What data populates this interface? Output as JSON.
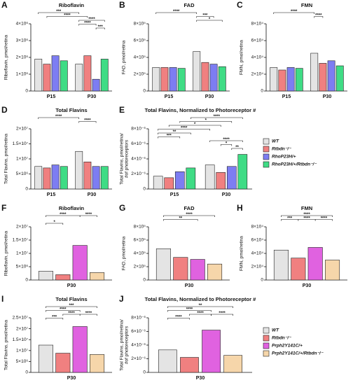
{
  "chart_data": [
    {
      "type": "bar",
      "label": "A",
      "title": "Riboflavin",
      "ylabel": "Riboflavin, pmol/retina",
      "categories": [
        "P15",
        "P30"
      ],
      "series": [
        {
          "color": "#e4e4e4",
          "values": [
            1900000,
            1600000
          ]
        },
        {
          "color": "#f08080",
          "values": [
            1600000,
            2100000
          ]
        },
        {
          "color": "#7d7df2",
          "values": [
            2100000,
            700000
          ]
        },
        {
          "color": "#3fdc85",
          "values": [
            1800000,
            1900000
          ]
        }
      ],
      "series_order": "grouped",
      "ylim": [
        0,
        4000000
      ],
      "yticks": [
        0,
        {
          "value": 1000000,
          "label": "1×10⁶"
        },
        {
          "value": 2000000,
          "label": "2×10⁶"
        },
        {
          "value": 3000000,
          "label": "3×10⁶"
        },
        {
          "value": 4000000,
          "label": "4×10⁶"
        }
      ],
      "annotations": [
        "***",
        "****",
        "****",
        "****",
        "***"
      ]
    },
    {
      "type": "bar",
      "label": "B",
      "title": "FAD",
      "ylabel": "FAD, pmol/retina",
      "categories": [
        "P15",
        "P30"
      ],
      "series": [
        {
          "color": "#e4e4e4",
          "values": [
            280000,
            470000
          ]
        },
        {
          "color": "#f08080",
          "values": [
            280000,
            340000
          ]
        },
        {
          "color": "#7d7df2",
          "values": [
            280000,
            320000
          ]
        },
        {
          "color": "#3fdc85",
          "values": [
            270000,
            290000
          ]
        }
      ],
      "ylim": [
        0,
        800000
      ],
      "yticks": [
        0,
        {
          "value": 200000,
          "label": "2×10⁵"
        },
        {
          "value": 400000,
          "label": "4×10⁵"
        },
        {
          "value": 600000,
          "label": "6×10⁵"
        },
        {
          "value": 800000,
          "label": "8×10⁵"
        }
      ],
      "annotations": [
        "****",
        "***",
        "*"
      ]
    },
    {
      "type": "bar",
      "label": "C",
      "title": "FMN",
      "ylabel": "FMN, pmol/retina",
      "categories": [
        "P15",
        "P30"
      ],
      "series": [
        {
          "color": "#e4e4e4",
          "values": [
            28000,
            45000
          ]
        },
        {
          "color": "#f08080",
          "values": [
            25000,
            33000
          ]
        },
        {
          "color": "#7d7df2",
          "values": [
            28000,
            36000
          ]
        },
        {
          "color": "#3fdc85",
          "values": [
            27000,
            30000
          ]
        }
      ],
      "ylim": [
        0,
        80000
      ],
      "yticks": [
        0,
        {
          "value": 20000,
          "label": "2×10⁴"
        },
        {
          "value": 40000,
          "label": "4×10⁴"
        },
        {
          "value": 60000,
          "label": "6×10⁴"
        },
        {
          "value": 80000,
          "label": "8×10⁴"
        }
      ],
      "annotations": [
        "****",
        "****"
      ]
    },
    {
      "type": "bar",
      "label": "D",
      "title": "Total Flavins",
      "ylabel": "Total Flavins, pmol/retina",
      "categories": [
        "P15",
        "P30"
      ],
      "series": [
        {
          "color": "#e4e4e4",
          "values": [
            7500000,
            12500000
          ]
        },
        {
          "color": "#f08080",
          "values": [
            7000000,
            9000000
          ]
        },
        {
          "color": "#7d7df2",
          "values": [
            8000000,
            7500000
          ]
        },
        {
          "color": "#3fdc85",
          "values": [
            7500000,
            7500000
          ]
        }
      ],
      "ylim": [
        0,
        20000000
      ],
      "yticks": [
        0,
        {
          "value": 5000000,
          "label": "5×10⁶"
        },
        {
          "value": 10000000,
          "label": "1×10⁷"
        },
        {
          "value": 15000000,
          "label": "1.5×10⁷"
        },
        {
          "value": 20000000,
          "label": "2×10⁷"
        }
      ],
      "annotations": [
        "****",
        "****"
      ]
    },
    {
      "type": "bar",
      "label": "E",
      "title": "Total Flavins, Normalized to Photoreceptor #",
      "ylabel": [
        "Total Flavins, pmol/retina/",
        "#of photoreceptors"
      ],
      "categories": [
        "P15",
        "P30"
      ],
      "series": [
        {
          "name": "WT",
          "color": "#e4e4e4",
          "values": [
            1.7e-06,
            3.2e-06
          ]
        },
        {
          "name": "Rtbdn⁻/⁻",
          "color": "#f08080",
          "values": [
            1.5e-06,
            2.2e-06
          ]
        },
        {
          "name": "RhoP23H/+",
          "color": "#7d7df2",
          "values": [
            2.3e-06,
            3e-06
          ]
        },
        {
          "name": "RhoP23H/+/Rtbdn⁻/⁻",
          "color": "#3fdc85",
          "values": [
            2.8e-06,
            4.6e-06
          ]
        }
      ],
      "ylim": [
        0,
        8e-06
      ],
      "yticks": [
        0,
        {
          "value": 2e-06,
          "label": "2×10⁻⁶"
        },
        {
          "value": 4e-06,
          "label": "4×10⁻⁶"
        },
        {
          "value": 6e-06,
          "label": "6×10⁻⁶"
        },
        {
          "value": 8e-06,
          "label": "8×10⁻⁶"
        }
      ],
      "annotations": [
        "****",
        "*",
        "*",
        "****",
        "**",
        "***",
        "****",
        "*",
        "**"
      ],
      "legend": "right"
    },
    {
      "type": "bar",
      "label": "F",
      "title": "Riboflavin",
      "ylabel": "Riboflavin, pmol/retina",
      "categories": [
        "P30"
      ],
      "series": [
        {
          "color": "#e4e4e4",
          "values": [
            3300000
          ]
        },
        {
          "color": "#f08080",
          "values": [
            2000000
          ]
        },
        {
          "color": "#e062e0",
          "values": [
            13000000
          ]
        },
        {
          "color": "#f6d6aa",
          "values": [
            2800000
          ]
        }
      ],
      "ylim": [
        0,
        20000000
      ],
      "yticks": [
        0,
        {
          "value": 5000000,
          "label": "5×10⁶"
        },
        {
          "value": 10000000,
          "label": "1×10⁷"
        },
        {
          "value": 15000000,
          "label": "1.5×10⁷"
        },
        {
          "value": 20000000,
          "label": "2×10⁷"
        }
      ],
      "annotations": [
        "*",
        "****",
        "****"
      ]
    },
    {
      "type": "bar",
      "label": "G",
      "title": "FAD",
      "ylabel": "FAD, pmol/retina",
      "categories": [
        "P30"
      ],
      "series": [
        {
          "color": "#e4e4e4",
          "values": [
            470000
          ]
        },
        {
          "color": "#f08080",
          "values": [
            340000
          ]
        },
        {
          "color": "#e062e0",
          "values": [
            310000
          ]
        },
        {
          "color": "#f6d6aa",
          "values": [
            240000
          ]
        }
      ],
      "ylim": [
        0,
        800000
      ],
      "yticks": [
        0,
        {
          "value": 200000,
          "label": "2×10⁵"
        },
        {
          "value": 400000,
          "label": "4×10⁵"
        },
        {
          "value": 600000,
          "label": "6×10⁵"
        },
        {
          "value": 800000,
          "label": "8×10⁵"
        }
      ],
      "annotations": [
        "****",
        "**"
      ]
    },
    {
      "type": "bar",
      "label": "H",
      "title": "FMN",
      "ylabel": "FMN, pmol/retina",
      "categories": [
        "P30"
      ],
      "series": [
        {
          "color": "#e4e4e4",
          "values": [
            45000
          ]
        },
        {
          "color": "#f08080",
          "values": [
            33000
          ]
        },
        {
          "color": "#e062e0",
          "values": [
            49000
          ]
        },
        {
          "color": "#f6d6aa",
          "values": [
            30000
          ]
        }
      ],
      "ylim": [
        0,
        80000
      ],
      "yticks": [
        0,
        {
          "value": 20000,
          "label": "2×10⁴"
        },
        {
          "value": 40000,
          "label": "4×10⁴"
        },
        {
          "value": 60000,
          "label": "6×10⁴"
        },
        {
          "value": 80000,
          "label": "8×10⁴"
        }
      ],
      "annotations": [
        "****",
        "***",
        "****",
        "****"
      ]
    },
    {
      "type": "bar",
      "label": "I",
      "title": "Total Flavins",
      "ylabel": "Total Flavins, pmol/retina",
      "categories": [
        "P30"
      ],
      "series": [
        {
          "color": "#e4e4e4",
          "values": [
            12500000
          ]
        },
        {
          "color": "#f08080",
          "values": [
            8800000
          ]
        },
        {
          "color": "#e062e0",
          "values": [
            21000000
          ]
        },
        {
          "color": "#f6d6aa",
          "values": [
            8200000
          ]
        }
      ],
      "ylim": [
        0,
        25000000
      ],
      "yticks": [
        0,
        {
          "value": 5000000,
          "label": "5×10⁶"
        },
        {
          "value": 10000000,
          "label": "1×10⁷"
        },
        {
          "value": 15000000,
          "label": "1.5×10⁷"
        },
        {
          "value": 20000000,
          "label": "2×10⁷"
        },
        {
          "value": 25000000,
          "label": "2.5×10⁷"
        }
      ],
      "annotations": [
        "***",
        "****",
        "****",
        "****",
        "***"
      ]
    },
    {
      "type": "bar",
      "label": "J",
      "title": "Total Flavins, Normalized to Photoreceptor #",
      "ylabel": [
        "Total Flavins, pmol/retina/",
        "#of photoreceptors"
      ],
      "categories": [
        "P30"
      ],
      "series": [
        {
          "name": "WT",
          "color": "#e4e4e4",
          "values": [
            3.3e-06
          ]
        },
        {
          "name": "Rtbdn⁻/⁻",
          "color": "#f08080",
          "values": [
            2.2e-06
          ]
        },
        {
          "name": "Prph2Y141C/+",
          "color": "#e062e0",
          "values": [
            6.2e-06
          ]
        },
        {
          "name": "Prph2Y141C/+/Rtbdn⁻/⁻",
          "color": "#f6d6aa",
          "values": [
            2.5e-06
          ]
        }
      ],
      "ylim": [
        0,
        8e-06
      ],
      "yticks": [
        0,
        {
          "value": 2e-06,
          "label": "2×10⁻⁶"
        },
        {
          "value": 4e-06,
          "label": "4×10⁻⁶"
        },
        {
          "value": 6e-06,
          "label": "6×10⁻⁶"
        },
        {
          "value": 8e-06,
          "label": "8×10⁻⁶"
        }
      ],
      "annotations": [
        "**",
        "****",
        "****",
        "****",
        "****"
      ],
      "legend": "right"
    }
  ]
}
